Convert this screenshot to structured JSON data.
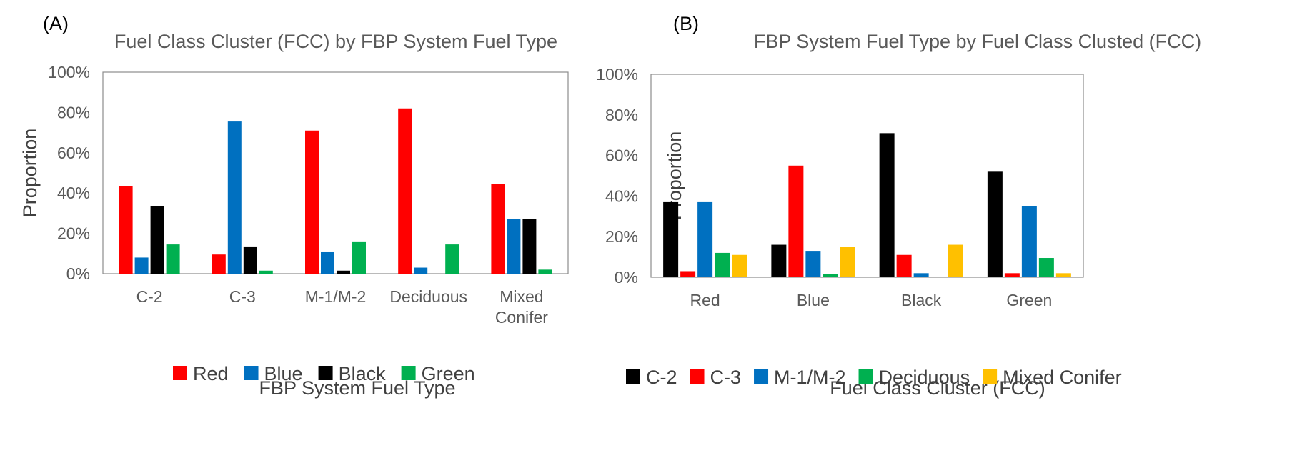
{
  "chart_data": [
    {
      "type": "bar",
      "panel_label": "(A)",
      "title": "Fuel Class Cluster (FCC) by FBP System Fuel Type",
      "xlabel": "FBP System Fuel Type",
      "ylabel": "Proportion",
      "ylim": [
        0,
        100
      ],
      "yticks": [
        "0%",
        "20%",
        "40%",
        "60%",
        "80%",
        "100%"
      ],
      "grid": false,
      "legend_position": "bottom",
      "categories": [
        [
          "C-2"
        ],
        [
          "C-3"
        ],
        [
          "M-1/M-2"
        ],
        [
          "Deciduous"
        ],
        [
          "Mixed",
          "Conifer"
        ]
      ],
      "series": [
        {
          "name": "Red",
          "color": "#ff0000",
          "values": [
            43.5,
            9.5,
            71,
            82,
            44.5
          ]
        },
        {
          "name": "Blue",
          "color": "#0070c0",
          "values": [
            8,
            75.5,
            11,
            3,
            27
          ]
        },
        {
          "name": "Black",
          "color": "#000000",
          "values": [
            33.5,
            13.5,
            1.5,
            0,
            27
          ]
        },
        {
          "name": "Green",
          "color": "#00b050",
          "values": [
            14.5,
            1.5,
            16,
            14.5,
            2
          ]
        }
      ]
    },
    {
      "type": "bar",
      "panel_label": "(B)",
      "title": "FBP System Fuel Type by Fuel Class Clusted (FCC)",
      "xlabel": "Fuel Class Cluster (FCC)",
      "ylabel": "Proportion",
      "ylim": [
        0,
        100
      ],
      "yticks": [
        "0%",
        "20%",
        "40%",
        "60%",
        "80%",
        "100%"
      ],
      "grid": false,
      "legend_position": "bottom",
      "categories": [
        [
          "Red"
        ],
        [
          "Blue"
        ],
        [
          "Black"
        ],
        [
          "Green"
        ]
      ],
      "series": [
        {
          "name": "C-2",
          "color": "#000000",
          "values": [
            37,
            16,
            71,
            52
          ]
        },
        {
          "name": "C-3",
          "color": "#ff0000",
          "values": [
            3,
            55,
            11,
            2
          ]
        },
        {
          "name": "M-1/M-2",
          "color": "#0070c0",
          "values": [
            37,
            13,
            2,
            35
          ]
        },
        {
          "name": "Deciduous",
          "color": "#00b050",
          "values": [
            12,
            1.5,
            0,
            9.5
          ]
        },
        {
          "name": "Mixed Conifer",
          "color": "#ffc000",
          "values": [
            11,
            15,
            16,
            2
          ]
        }
      ]
    }
  ]
}
